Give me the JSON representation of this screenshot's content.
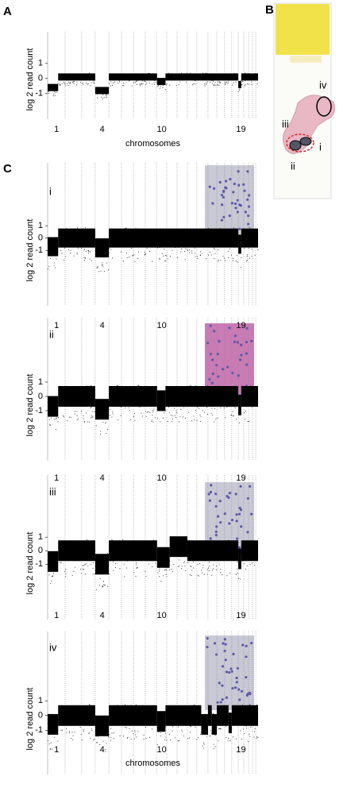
{
  "slide": {
    "label": "B",
    "regions": [
      "iv",
      "iii",
      "i",
      "ii"
    ]
  },
  "panel_c_label": "C",
  "chart_data": [
    {
      "type": "scatter",
      "label": "A",
      "ylabel": "log 2 read count",
      "xlabel": "chromosomes",
      "color": "#000000",
      "xlim": [
        0,
        100
      ],
      "ylim": [
        -2.7,
        3.1
      ],
      "yticks": [
        1,
        0,
        -1
      ],
      "xticks": [
        {
          "value": 4.2,
          "label": "1"
        },
        {
          "value": 25.9,
          "label": "4"
        },
        {
          "value": 54.2,
          "label": "10"
        },
        {
          "value": 91.9,
          "label": "19"
        }
      ],
      "boundaries": [
        8.3,
        16.2,
        22.6,
        29.1,
        35.1,
        40.8,
        46.4,
        51.7,
        56.6,
        61.5,
        66.4,
        70.9,
        76.2,
        80.4,
        84.1,
        87.5,
        90.6,
        93.2,
        95.5,
        97.4,
        98.9
      ],
      "segments": [
        {
          "start": 0,
          "end": 5,
          "value": -0.6
        },
        {
          "start": 5,
          "end": 22.6,
          "value": 0.1
        },
        {
          "start": 22.6,
          "end": 29.1,
          "value": -0.8
        },
        {
          "start": 29.1,
          "end": 52,
          "value": 0.1
        },
        {
          "start": 52,
          "end": 56,
          "value": -0.2
        },
        {
          "start": 56,
          "end": 90.6,
          "value": 0.1
        },
        {
          "start": 90.6,
          "end": 92,
          "value": -0.4
        },
        {
          "start": 92,
          "end": 100,
          "value": 0.1
        }
      ]
    },
    {
      "type": "scatter",
      "label": "i",
      "ylabel": "log 2 read count",
      "color": "#000000",
      "xlim": [
        0,
        100
      ],
      "ylim": [
        -5.5,
        6.1
      ],
      "yticks": [
        1,
        0,
        -1
      ],
      "xticks": [
        {
          "value": 4.2,
          "label": "1"
        },
        {
          "value": 25.9,
          "label": "4"
        },
        {
          "value": 54.2,
          "label": "10"
        },
        {
          "value": 91.9,
          "label": "19"
        }
      ],
      "boundaries": [
        8.3,
        16.2,
        22.6,
        29.1,
        35.1,
        40.8,
        46.4,
        51.7,
        56.6,
        61.5,
        66.4,
        70.9,
        76.2,
        80.4,
        84.1,
        87.5,
        90.6,
        93.2,
        95.5,
        97.4,
        98.9
      ],
      "segments": [
        {
          "start": 0,
          "end": 5,
          "value": -0.7
        },
        {
          "start": 5,
          "end": 22.6,
          "value": 0
        },
        {
          "start": 22.6,
          "end": 29.1,
          "value": -0.8
        },
        {
          "start": 29.1,
          "end": 90.6,
          "value": 0
        },
        {
          "start": 90.6,
          "end": 92,
          "value": -0.5
        },
        {
          "start": 92,
          "end": 100,
          "value": 0
        }
      ]
    },
    {
      "type": "scatter",
      "label": "ii",
      "ylabel": "log 2 read count",
      "color": "#000000",
      "xlim": [
        0,
        100
      ],
      "ylim": [
        -4.5,
        5.5
      ],
      "yticks": [
        1,
        0,
        -1
      ],
      "xticks": [
        {
          "value": 4.2,
          "label": "1"
        },
        {
          "value": 25.9,
          "label": "4"
        },
        {
          "value": 54.2,
          "label": "10"
        },
        {
          "value": 91.9,
          "label": "19"
        }
      ],
      "boundaries": [
        8.3,
        16.2,
        22.6,
        29.1,
        35.1,
        40.8,
        46.4,
        51.7,
        56.6,
        61.5,
        66.4,
        70.9,
        76.2,
        80.4,
        84.1,
        87.5,
        90.6,
        93.2,
        95.5,
        97.4,
        98.9
      ],
      "segments": [
        {
          "start": 0,
          "end": 5,
          "value": -0.7
        },
        {
          "start": 5,
          "end": 22.6,
          "value": 0
        },
        {
          "start": 22.6,
          "end": 29.1,
          "value": -0.9
        },
        {
          "start": 29.1,
          "end": 52,
          "value": 0
        },
        {
          "start": 52,
          "end": 56,
          "value": -0.3
        },
        {
          "start": 56,
          "end": 90.6,
          "value": 0
        },
        {
          "start": 90.6,
          "end": 92,
          "value": -0.6
        },
        {
          "start": 92,
          "end": 100,
          "value": 0
        }
      ]
    },
    {
      "type": "scatter",
      "label": "iii",
      "ylabel": "log 2 read count",
      "color": "#000000",
      "xlim": [
        0,
        100
      ],
      "ylim": [
        -5.1,
        5.6
      ],
      "yticks": [
        1,
        0,
        -1
      ],
      "xticks": [
        {
          "value": 4.2,
          "label": "1"
        },
        {
          "value": 25.9,
          "label": "4"
        },
        {
          "value": 54.2,
          "label": "10"
        },
        {
          "value": 91.9,
          "label": "19"
        }
      ],
      "boundaries": [
        8.3,
        16.2,
        22.6,
        29.1,
        35.1,
        40.8,
        46.4,
        51.7,
        56.6,
        61.5,
        66.4,
        70.9,
        76.2,
        80.4,
        84.1,
        87.5,
        90.6,
        93.2,
        95.5,
        97.4,
        98.9
      ],
      "segments": [
        {
          "start": 0,
          "end": 5,
          "value": -0.8
        },
        {
          "start": 5,
          "end": 22.6,
          "value": 0
        },
        {
          "start": 22.6,
          "end": 29.1,
          "value": -1
        },
        {
          "start": 29.1,
          "end": 52,
          "value": 0
        },
        {
          "start": 52,
          "end": 58,
          "value": -0.5
        },
        {
          "start": 58,
          "end": 66.4,
          "value": 0.3
        },
        {
          "start": 66.4,
          "end": 90.6,
          "value": 0
        },
        {
          "start": 90.6,
          "end": 92,
          "value": -0.6
        },
        {
          "start": 92,
          "end": 100,
          "value": 0
        }
      ]
    },
    {
      "type": "scatter",
      "label": "iv",
      "ylabel": "log 2 read count",
      "xlabel": "chromosomes",
      "color": "#000000",
      "xlim": [
        0,
        100
      ],
      "ylim": [
        -4.0,
        5.7
      ],
      "yticks": [
        1,
        0,
        -1
      ],
      "xticks": [
        {
          "value": 4.2,
          "label": "1"
        },
        {
          "value": 25.9,
          "label": "4"
        },
        {
          "value": 54.2,
          "label": "10"
        },
        {
          "value": 91.9,
          "label": "19"
        }
      ],
      "boundaries": [
        8.3,
        16.2,
        22.6,
        29.1,
        35.1,
        40.8,
        46.4,
        51.7,
        56.6,
        61.5,
        66.4,
        70.9,
        76.2,
        80.4,
        84.1,
        87.5,
        90.6,
        93.2,
        95.5,
        97.4,
        98.9
      ],
      "segments": [
        {
          "start": 0,
          "end": 5,
          "value": -0.6
        },
        {
          "start": 5,
          "end": 22.6,
          "value": 0
        },
        {
          "start": 22.6,
          "end": 29.1,
          "value": -0.7
        },
        {
          "start": 29.1,
          "end": 52,
          "value": 0
        },
        {
          "start": 52,
          "end": 56,
          "value": -0.4
        },
        {
          "start": 56,
          "end": 73,
          "value": 0
        },
        {
          "start": 73,
          "end": 76.2,
          "value": -0.6
        },
        {
          "start": 76.2,
          "end": 78,
          "value": 0
        },
        {
          "start": 78,
          "end": 80.4,
          "value": -0.6
        },
        {
          "start": 80.4,
          "end": 86,
          "value": 0
        },
        {
          "start": 86,
          "end": 87.5,
          "value": -0.5
        },
        {
          "start": 87.5,
          "end": 100,
          "value": 0
        }
      ]
    }
  ]
}
